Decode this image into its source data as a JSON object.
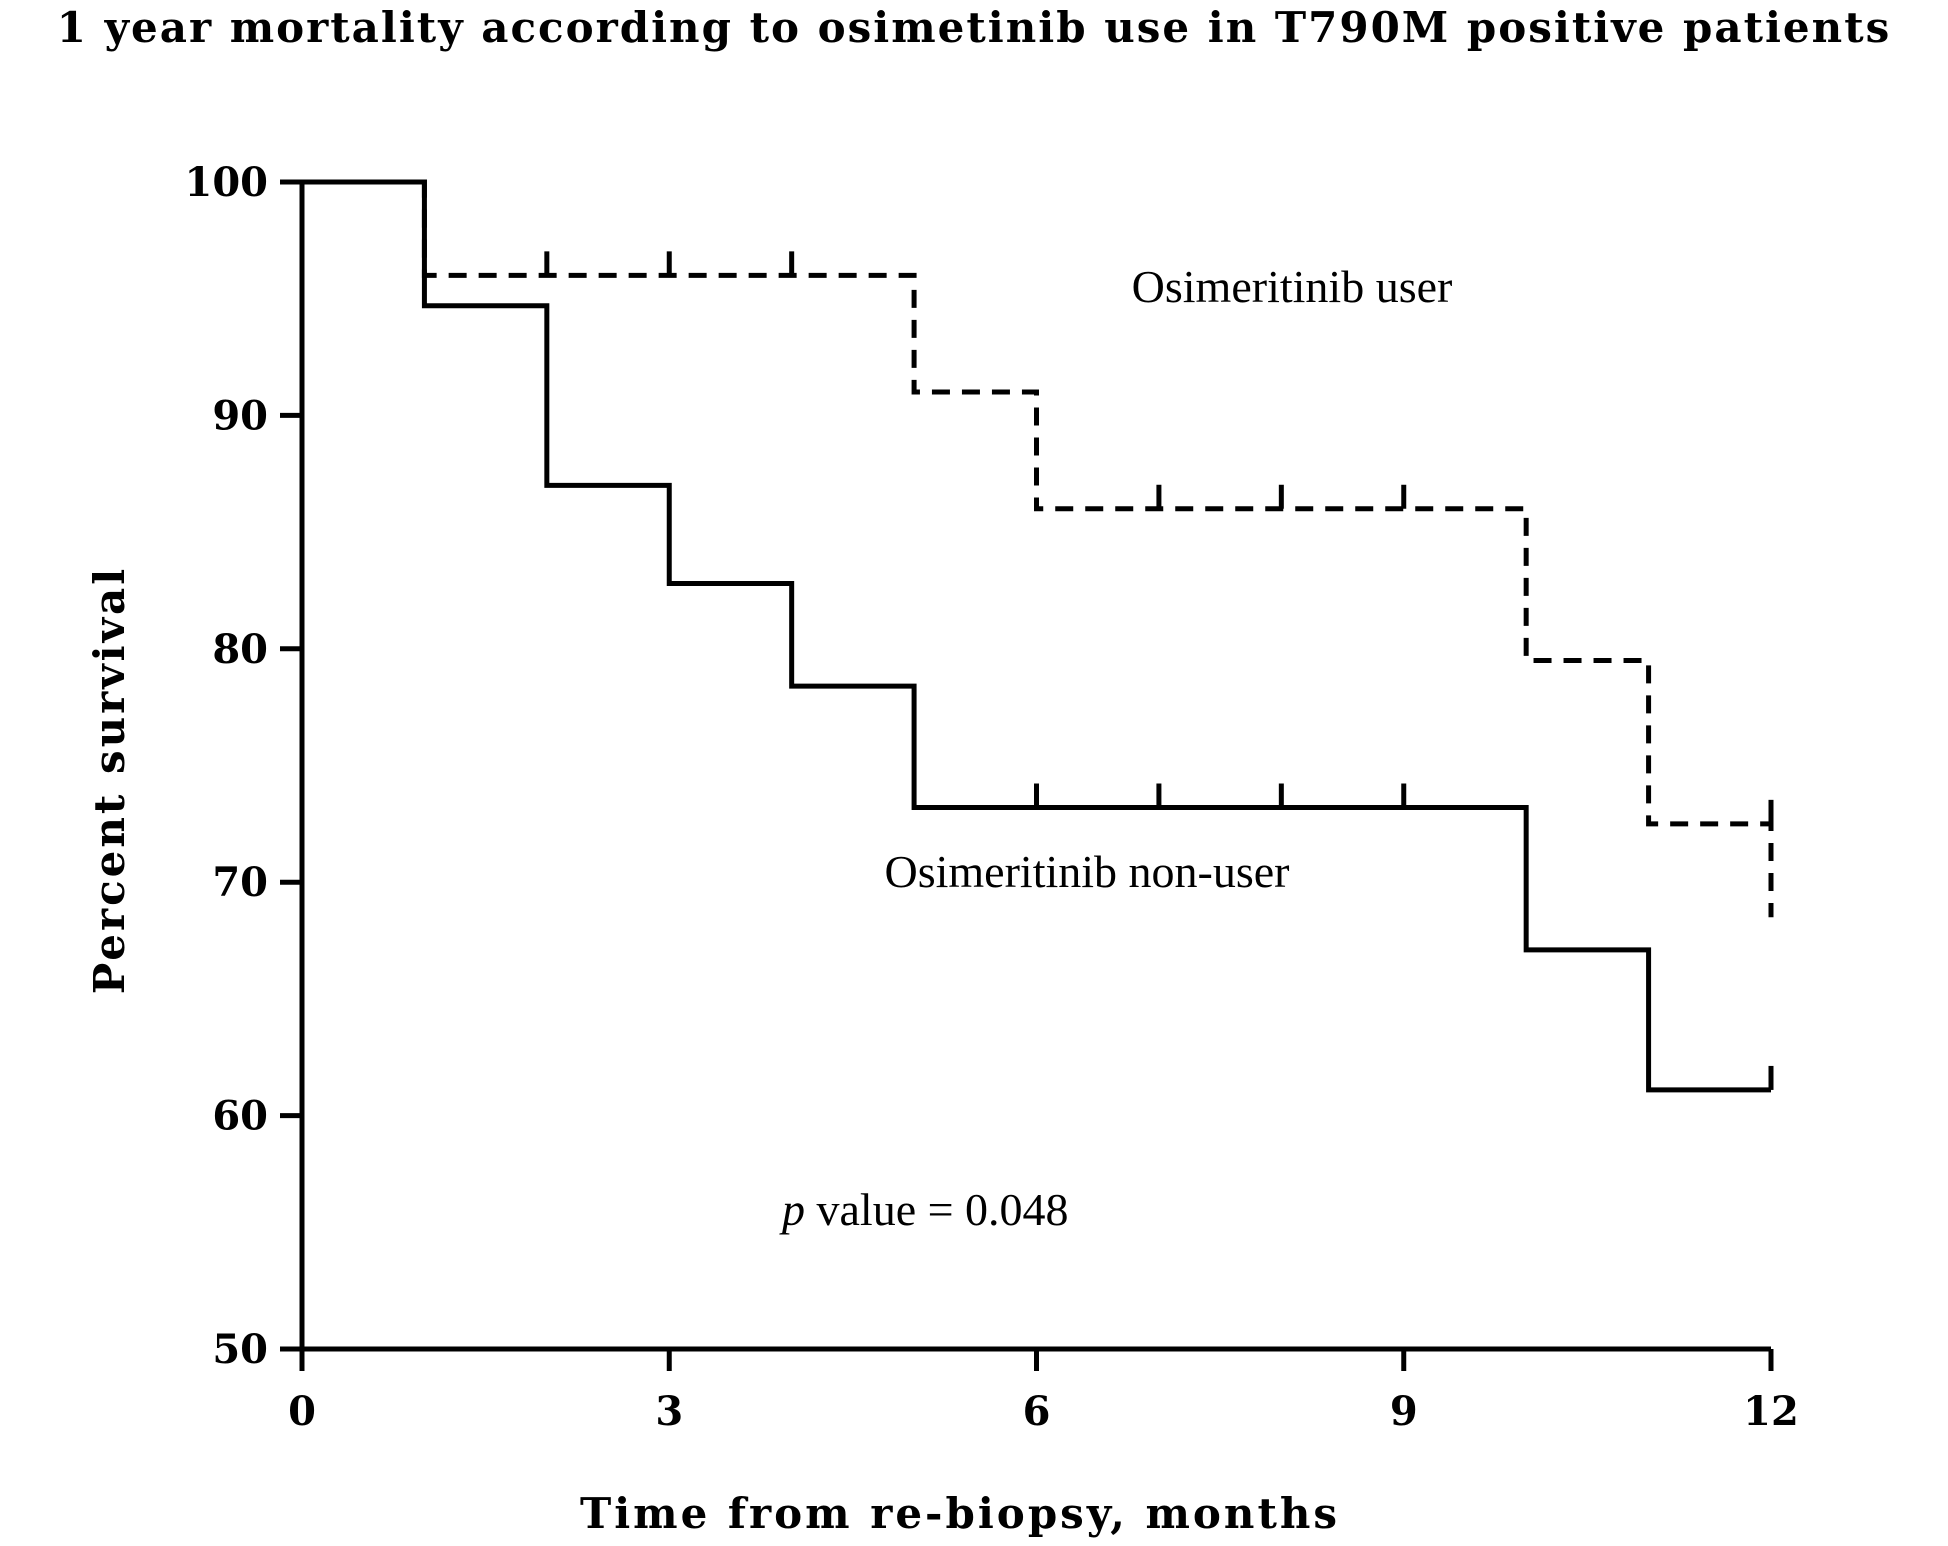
{
  "chart_data": {
    "type": "line",
    "title": "1 year mortality according to osimetinib use in  T790M positive patients",
    "xlabel": "Time from re-biopsy, months",
    "ylabel": "Percent survival",
    "xlim": [
      0,
      12
    ],
    "ylim": [
      50,
      100
    ],
    "xticks": [
      0,
      3,
      6,
      9,
      12
    ],
    "yticks": [
      50,
      60,
      70,
      80,
      90,
      100
    ],
    "grid": false,
    "legend": "none",
    "series": [
      {
        "name": "Osimeritinib user",
        "style": "dashed",
        "color": "#000000",
        "steps": [
          [
            0,
            100
          ],
          [
            1,
            96
          ],
          [
            5,
            91
          ],
          [
            6,
            86
          ],
          [
            10,
            79.5
          ],
          [
            11,
            72.5
          ],
          [
            12,
            68.5
          ]
        ],
        "censored": [
          [
            2,
            96
          ],
          [
            3,
            96
          ],
          [
            4,
            96
          ],
          [
            7,
            86
          ],
          [
            8,
            86
          ],
          [
            9,
            86
          ],
          [
            12,
            72.5
          ]
        ]
      },
      {
        "name": "Osimeritinib non-user",
        "style": "solid",
        "color": "#000000",
        "steps": [
          [
            0,
            100
          ],
          [
            1,
            94.7
          ],
          [
            2,
            87
          ],
          [
            3,
            82.8
          ],
          [
            4,
            78.4
          ],
          [
            5,
            73.2
          ],
          [
            10,
            67.1
          ],
          [
            11,
            61.1
          ],
          [
            12,
            61.1
          ]
        ],
        "censored": [
          [
            6,
            73.2
          ],
          [
            7,
            73.2
          ],
          [
            8,
            73.2
          ],
          [
            9,
            73.2
          ],
          [
            12,
            61.1
          ]
        ]
      }
    ],
    "annotations": {
      "p_italic": "p",
      "p_rest": " value = 0.048"
    }
  }
}
